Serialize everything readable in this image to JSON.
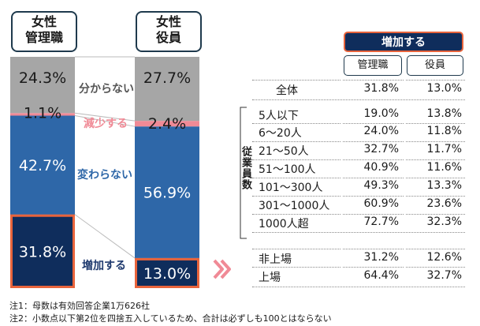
{
  "chart_data": {
    "type": "bar",
    "stacked": true,
    "categories": [
      "女性\n管理職",
      "女性\n役員"
    ],
    "series": [
      {
        "name": "増加する",
        "values": [
          31.8,
          13.0
        ],
        "color": "#0f2d5c"
      },
      {
        "name": "変わらない",
        "values": [
          42.7,
          56.9
        ],
        "color": "#2e67a8"
      },
      {
        "name": "減少する",
        "values": [
          1.1,
          2.4
        ],
        "color": "#f08a96"
      },
      {
        "name": "分からない",
        "values": [
          24.3,
          27.7
        ],
        "color": "#a6a6a6"
      }
    ],
    "value_labels": [
      [
        "31.8%",
        "13.0%"
      ],
      [
        "42.7%",
        "56.9%"
      ],
      [
        "1.1%",
        "2.4%"
      ],
      [
        "24.3%",
        "27.7%"
      ]
    ],
    "legend_label_colors": [
      "#1f3a6e",
      "#2e67a8",
      "#f08a96",
      "#555555"
    ],
    "highlight_color": "#e8643c"
  },
  "headers": {
    "mgmt": [
      "女性",
      "管理職"
    ],
    "exec": [
      "女性",
      "役員"
    ]
  },
  "table": {
    "title": "増加する",
    "columns": [
      "管理職",
      "役員"
    ],
    "group_label": "従業員数",
    "rows": [
      {
        "label": "全体",
        "mgmt": "31.8%",
        "exec": "13.0%"
      },
      {
        "label": "5人以下",
        "mgmt": "19.0%",
        "exec": "13.8%"
      },
      {
        "label": "6～20人",
        "mgmt": "24.0%",
        "exec": "11.8%"
      },
      {
        "label": "21～50人",
        "mgmt": "32.7%",
        "exec": "11.7%"
      },
      {
        "label": "51～100人",
        "mgmt": "40.9%",
        "exec": "11.6%"
      },
      {
        "label": "101～300人",
        "mgmt": "49.3%",
        "exec": "13.3%"
      },
      {
        "label": "301～1000人",
        "mgmt": "60.9%",
        "exec": "23.6%"
      },
      {
        "label": "1000人超",
        "mgmt": "72.7%",
        "exec": "32.3%"
      },
      {
        "label": "非上場",
        "mgmt": "31.2%",
        "exec": "12.6%"
      },
      {
        "label": "上場",
        "mgmt": "64.4%",
        "exec": "32.7%"
      }
    ]
  },
  "notes": [
    "注1：母数は有効回答企業1万626社",
    "注2：小数点以下第2位を四捨五入しているため、合計は必ずしも100とはならない"
  ]
}
